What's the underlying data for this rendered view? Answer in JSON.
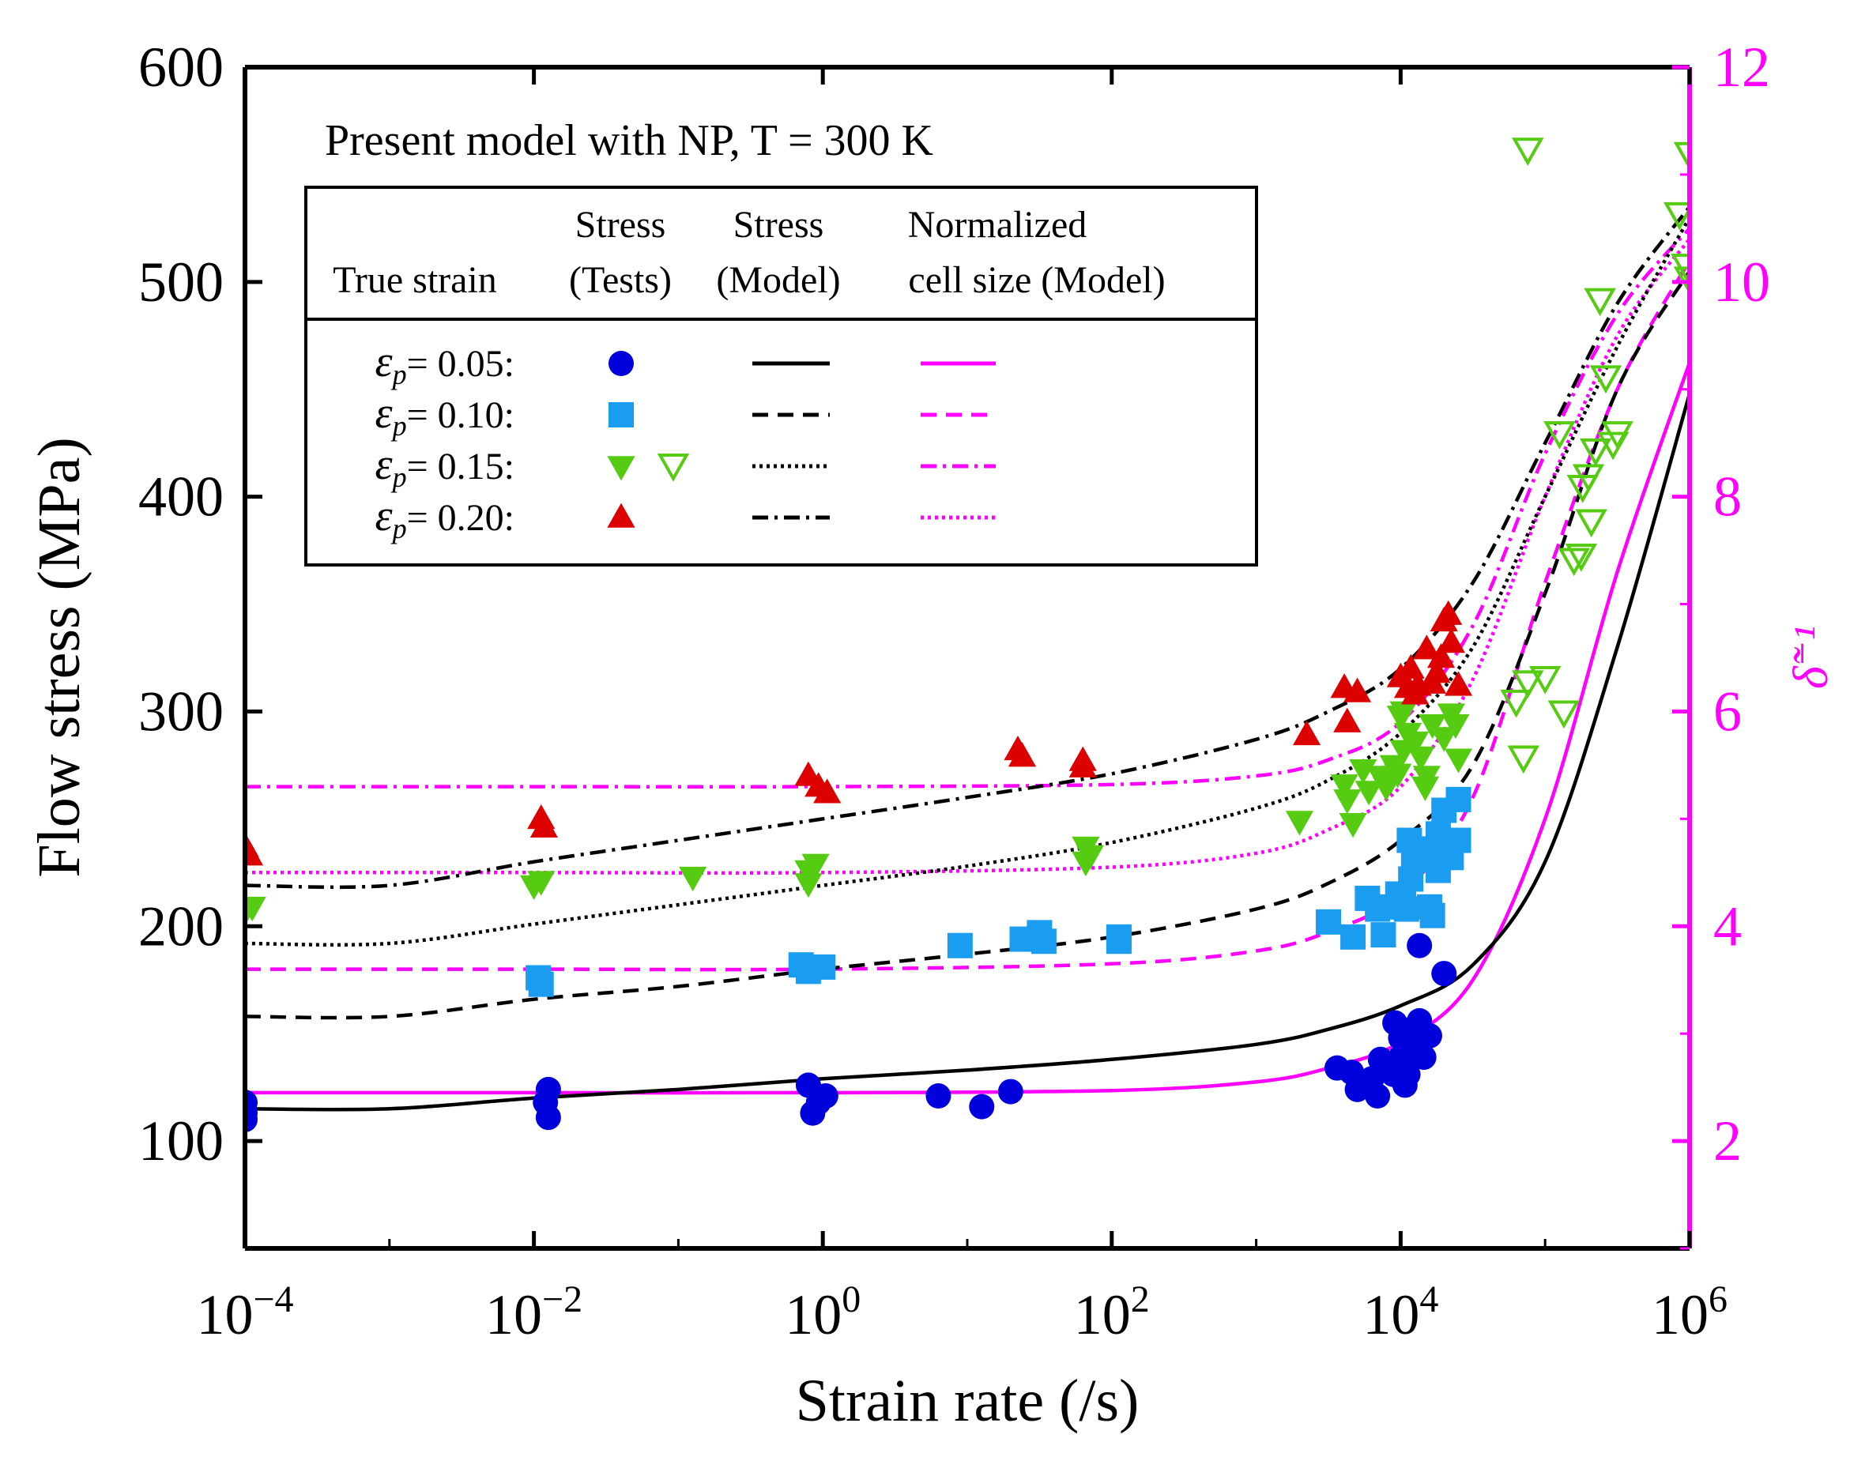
{
  "chart_data": {
    "type": "scatter",
    "xscale": "log10",
    "xlim": [
      0.0001,
      1000000
    ],
    "ylim": [
      50,
      600
    ],
    "y2lim": [
      1,
      12
    ],
    "xlabel": "Strain rate (/s)",
    "ylabel": "Flow stress (MPa)",
    "y2label": "δ̃⁻¹",
    "x_ticks": [
      {
        "value": 0.0001,
        "base": "10",
        "exp": "−4"
      },
      {
        "value": 0.01,
        "base": "10",
        "exp": "−2"
      },
      {
        "value": 1,
        "base": "10",
        "exp": "0"
      },
      {
        "value": 100,
        "base": "10",
        "exp": "2"
      },
      {
        "value": 10000,
        "base": "10",
        "exp": "4"
      },
      {
        "value": 1000000,
        "base": "10",
        "exp": "6"
      }
    ],
    "y_ticks": [
      100,
      200,
      300,
      400,
      500,
      600
    ],
    "y2_ticks": [
      2,
      4,
      6,
      8,
      10,
      12
    ],
    "annotation": "Present model with NP, T = 300 K",
    "colors": {
      "black": "#000000",
      "magenta": "#ff00ff",
      "blue": "#0000dd",
      "lightblue": "#1a9cf0",
      "green": "#55cc11",
      "red": "#dd0000"
    },
    "legend": {
      "headers": [
        {
          "line1": "",
          "line2": "True strain"
        },
        {
          "line1": "Stress",
          "line2": "(Tests)"
        },
        {
          "line1": "Stress",
          "line2": "(Model)"
        },
        {
          "line1": "Normalized",
          "line2": "cell size (Model)"
        }
      ],
      "rows": [
        {
          "symbol": "ε",
          "sub": "p",
          "label": "= 0.05:",
          "marker": "circle",
          "color": "#0000dd",
          "dash": "solid",
          "idash": "solid"
        },
        {
          "symbol": "ε",
          "sub": "p",
          "label": "= 0.10:",
          "marker": "square",
          "color": "#1a9cf0",
          "dash": "dashed",
          "idash": "dashed"
        },
        {
          "symbol": "ε",
          "sub": "p",
          "label": "= 0.15:",
          "marker": "tri-down",
          "color": "#55cc11",
          "dash": "dotted",
          "idash": "dashdot"
        },
        {
          "symbol": "ε",
          "sub": "p",
          "label": "= 0.20:",
          "marker": "tri-up",
          "color": "#dd0000",
          "dash": "dashdot",
          "idash": "dotted"
        }
      ]
    },
    "stress_model": [
      {
        "name": "ep=0.05",
        "dash": "solid",
        "points": [
          [
            -4,
            115
          ],
          [
            -3,
            115
          ],
          [
            -2,
            120
          ],
          [
            -1,
            124
          ],
          [
            0,
            129
          ],
          [
            1,
            133
          ],
          [
            2,
            138
          ],
          [
            3,
            145
          ],
          [
            3.5,
            152
          ],
          [
            4,
            163
          ],
          [
            4.5,
            182
          ],
          [
            5,
            230
          ],
          [
            5.5,
            330
          ],
          [
            6,
            448
          ]
        ]
      },
      {
        "name": "ep=0.10",
        "dash": "dashed",
        "points": [
          [
            -4,
            158
          ],
          [
            -3,
            158
          ],
          [
            -2,
            166
          ],
          [
            -1,
            172
          ],
          [
            0,
            180
          ],
          [
            1,
            187
          ],
          [
            2,
            195
          ],
          [
            3,
            208
          ],
          [
            3.5,
            220
          ],
          [
            4,
            240
          ],
          [
            4.5,
            275
          ],
          [
            5,
            355
          ],
          [
            5.5,
            450
          ],
          [
            6,
            505
          ]
        ]
      },
      {
        "name": "ep=0.15",
        "dash": "dotted",
        "points": [
          [
            -4,
            192
          ],
          [
            -3,
            192
          ],
          [
            -2,
            201
          ],
          [
            -1,
            210
          ],
          [
            0,
            219
          ],
          [
            1,
            228
          ],
          [
            2,
            239
          ],
          [
            3,
            255
          ],
          [
            3.5,
            268
          ],
          [
            4,
            290
          ],
          [
            4.5,
            330
          ],
          [
            5,
            400
          ],
          [
            5.5,
            470
          ],
          [
            6,
            530
          ]
        ]
      },
      {
        "name": "ep=0.20",
        "dash": "dashdot",
        "points": [
          [
            -4,
            219
          ],
          [
            -3,
            219
          ],
          [
            -2,
            230
          ],
          [
            -1,
            240
          ],
          [
            0,
            250
          ],
          [
            1,
            260
          ],
          [
            2,
            271
          ],
          [
            3,
            287
          ],
          [
            3.5,
            300
          ],
          [
            4,
            320
          ],
          [
            4.5,
            360
          ],
          [
            5,
            425
          ],
          [
            5.5,
            490
          ],
          [
            6,
            535
          ]
        ]
      }
    ],
    "cell_model": [
      {
        "name": "ep=0.05",
        "dash": "solid",
        "points": [
          [
            -4,
            2.45
          ],
          [
            -2,
            2.45
          ],
          [
            0,
            2.45
          ],
          [
            2,
            2.47
          ],
          [
            3,
            2.55
          ],
          [
            3.5,
            2.68
          ],
          [
            4,
            2.92
          ],
          [
            4.5,
            3.5
          ],
          [
            5,
            5.0
          ],
          [
            5.5,
            7.3
          ],
          [
            6,
            9.25
          ]
        ]
      },
      {
        "name": "ep=0.10",
        "dash": "dashed",
        "points": [
          [
            -4,
            3.6
          ],
          [
            -2,
            3.6
          ],
          [
            0,
            3.6
          ],
          [
            2,
            3.65
          ],
          [
            3,
            3.77
          ],
          [
            3.5,
            3.95
          ],
          [
            4,
            4.3
          ],
          [
            4.5,
            5.2
          ],
          [
            5,
            7.2
          ],
          [
            5.5,
            9.0
          ],
          [
            6,
            10.2
          ]
        ]
      },
      {
        "name": "ep=0.15",
        "dash": "dashdot",
        "points": [
          [
            -4,
            5.3
          ],
          [
            -2,
            5.3
          ],
          [
            0,
            5.3
          ],
          [
            2,
            5.32
          ],
          [
            3,
            5.4
          ],
          [
            3.5,
            5.55
          ],
          [
            4,
            5.9
          ],
          [
            4.5,
            6.8
          ],
          [
            5,
            8.4
          ],
          [
            5.5,
            9.7
          ],
          [
            6,
            10.5
          ]
        ]
      },
      {
        "name": "ep=0.20",
        "dash": "dotted",
        "points": [
          [
            -4,
            4.5
          ],
          [
            -2,
            4.5
          ],
          [
            0,
            4.5
          ],
          [
            2,
            4.55
          ],
          [
            3,
            4.68
          ],
          [
            3.5,
            4.9
          ],
          [
            4,
            5.3
          ],
          [
            4.5,
            6.3
          ],
          [
            5,
            8.0
          ],
          [
            5.5,
            9.5
          ],
          [
            6,
            10.4
          ]
        ]
      }
    ],
    "tests": [
      {
        "name": "ep=0.05",
        "marker": "circle",
        "color": "#0000dd",
        "points": [
          [
            -4,
            118
          ],
          [
            -4,
            113
          ],
          [
            -4,
            110
          ],
          [
            -1.9,
            124
          ],
          [
            -1.92,
            118
          ],
          [
            -1.9,
            111
          ],
          [
            -0.1,
            126
          ],
          [
            -0.07,
            113
          ],
          [
            -0.03,
            118
          ],
          [
            0.02,
            121
          ],
          [
            0.8,
            121
          ],
          [
            1.1,
            116
          ],
          [
            1.3,
            123
          ],
          [
            3.56,
            134
          ],
          [
            3.66,
            132
          ],
          [
            3.7,
            124
          ],
          [
            3.8,
            129
          ],
          [
            3.84,
            121
          ],
          [
            3.86,
            138
          ],
          [
            3.95,
            131
          ],
          [
            4.0,
            139
          ],
          [
            3.9,
            135
          ],
          [
            3.96,
            155
          ],
          [
            4.0,
            148
          ],
          [
            4.03,
            126
          ],
          [
            4.05,
            131
          ],
          [
            4.06,
            151
          ],
          [
            4.07,
            152
          ],
          [
            4.1,
            146
          ],
          [
            4.13,
            156
          ],
          [
            4.16,
            139
          ],
          [
            4.2,
            149
          ],
          [
            4.13,
            191
          ],
          [
            4.3,
            178
          ]
        ]
      },
      {
        "name": "ep=0.10",
        "marker": "square",
        "color": "#1a9cf0",
        "points": [
          [
            -1.97,
            176
          ],
          [
            -1.95,
            173
          ],
          [
            -0.15,
            182
          ],
          [
            -0.1,
            179
          ],
          [
            0,
            181
          ],
          [
            0.95,
            191
          ],
          [
            1.38,
            194
          ],
          [
            1.5,
            197
          ],
          [
            1.53,
            193
          ],
          [
            2.05,
            195
          ],
          [
            2.05,
            193
          ],
          [
            3.5,
            202
          ],
          [
            3.67,
            195
          ],
          [
            3.77,
            213
          ],
          [
            3.84,
            208
          ],
          [
            3.88,
            196
          ],
          [
            3.9,
            209
          ],
          [
            3.98,
            215
          ],
          [
            4.02,
            213
          ],
          [
            4.04,
            208
          ],
          [
            4.07,
            222
          ],
          [
            4.06,
            240
          ],
          [
            4.09,
            232
          ],
          [
            4.14,
            236
          ],
          [
            4.16,
            231
          ],
          [
            4.2,
            209
          ],
          [
            4.22,
            205
          ],
          [
            4.26,
            243
          ],
          [
            4.26,
            226
          ],
          [
            4.3,
            237
          ],
          [
            4.3,
            254
          ],
          [
            4.35,
            232
          ],
          [
            4.4,
            259
          ],
          [
            4.4,
            240
          ]
        ]
      },
      {
        "name": "ep=0.15 filled",
        "marker": "tri-down",
        "color": "#55cc11",
        "points": [
          [
            -4,
            207
          ],
          [
            -3.95,
            209
          ],
          [
            -2,
            219
          ],
          [
            -1.95,
            221
          ],
          [
            -0.9,
            223
          ],
          [
            -0.1,
            226
          ],
          [
            -0.1,
            220
          ],
          [
            -0.05,
            229
          ],
          [
            1.82,
            237
          ],
          [
            1.85,
            233
          ],
          [
            1.82,
            230
          ],
          [
            3.3,
            249
          ],
          [
            3.61,
            266
          ],
          [
            3.63,
            259
          ],
          [
            3.67,
            248
          ],
          [
            3.74,
            273
          ],
          [
            3.78,
            263
          ],
          [
            3.86,
            270
          ],
          [
            3.9,
            265
          ],
          [
            3.95,
            275
          ],
          [
            3.93,
            268
          ],
          [
            3.98,
            271
          ],
          [
            4.02,
            282
          ],
          [
            4.05,
            290
          ],
          [
            4.0,
            298
          ],
          [
            4.02,
            300
          ],
          [
            4.1,
            286
          ],
          [
            4.14,
            279
          ],
          [
            4.17,
            265
          ],
          [
            4.18,
            270
          ],
          [
            4.22,
            294
          ],
          [
            4.3,
            288
          ],
          [
            4.35,
            299
          ],
          [
            4.38,
            294
          ],
          [
            4.4,
            278
          ]
        ]
      },
      {
        "name": "ep=0.15 open",
        "marker": "tri-down-open",
        "color": "#55cc11",
        "points": [
          [
            4.8,
            305
          ],
          [
            4.85,
            279
          ],
          [
            4.88,
            314
          ],
          [
            5.0,
            316
          ],
          [
            5.1,
            430
          ],
          [
            5.13,
            300
          ],
          [
            5.2,
            371
          ],
          [
            5.25,
            373
          ],
          [
            5.26,
            405
          ],
          [
            5.3,
            410
          ],
          [
            5.32,
            389
          ],
          [
            5.35,
            422
          ],
          [
            5.38,
            492
          ],
          [
            5.42,
            456
          ],
          [
            5.47,
            425
          ],
          [
            5.5,
            430
          ],
          [
            4.88,
            562
          ],
          [
            5.93,
            532
          ],
          [
            5.98,
            508
          ],
          [
            6.0,
            502
          ],
          [
            6.0,
            560
          ]
        ]
      },
      {
        "name": "ep=0.20",
        "marker": "tri-up",
        "color": "#dd0000",
        "points": [
          [
            -4,
            237
          ],
          [
            -3.97,
            233
          ],
          [
            -1.95,
            250
          ],
          [
            -1.93,
            246
          ],
          [
            -0.1,
            270
          ],
          [
            -0.03,
            265
          ],
          [
            0.03,
            262
          ],
          [
            1.35,
            282
          ],
          [
            1.38,
            279
          ],
          [
            1.8,
            277
          ],
          [
            1.8,
            274
          ],
          [
            3.35,
            289
          ],
          [
            3.61,
            311
          ],
          [
            3.63,
            295
          ],
          [
            3.7,
            309
          ],
          [
            4.0,
            316
          ],
          [
            4.05,
            311
          ],
          [
            4.07,
            320
          ],
          [
            4.1,
            308
          ],
          [
            4.12,
            312
          ],
          [
            4.18,
            329
          ],
          [
            4.22,
            313
          ],
          [
            4.25,
            318
          ],
          [
            4.28,
            325
          ],
          [
            4.3,
            342
          ],
          [
            4.33,
            345
          ],
          [
            4.35,
            332
          ],
          [
            4.4,
            312
          ]
        ]
      }
    ]
  }
}
